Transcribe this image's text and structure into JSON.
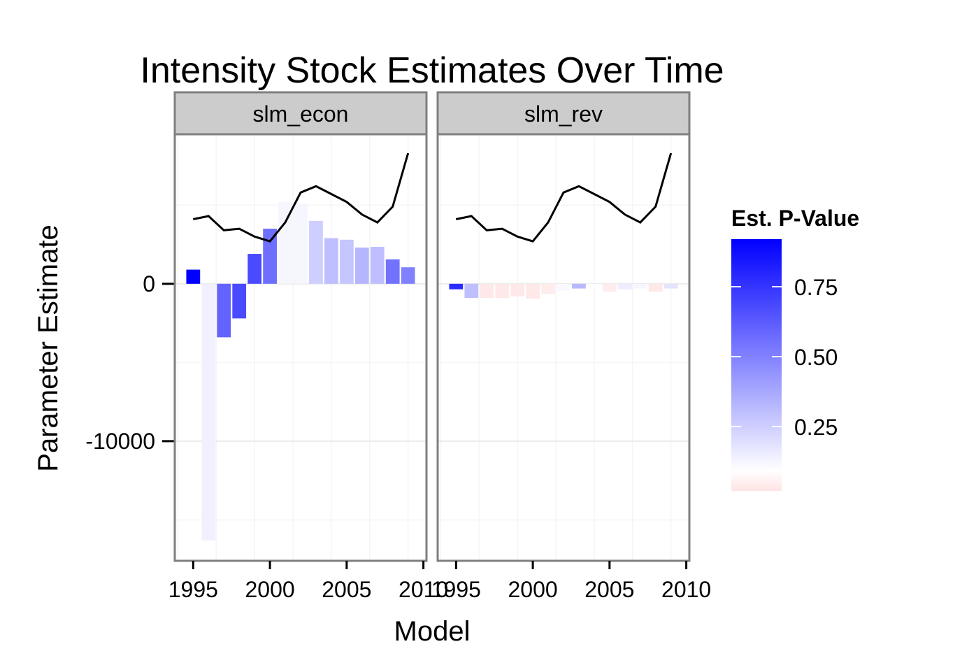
{
  "chart_data": {
    "type": "bar",
    "title": "Intensity Stock Estimates Over Time",
    "xlabel": "Model",
    "ylabel": "Parameter Estimate",
    "xlim": [
      1993.8,
      2010.2
    ],
    "ylim": [
      -17600,
      9500
    ],
    "x_ticks": [
      1995,
      2000,
      2005,
      2010
    ],
    "y_ticks": [
      0,
      -10000
    ],
    "x_tick_labels": [
      "1995",
      "2000",
      "2005",
      "2010"
    ],
    "y_tick_labels": [
      "0",
      "-10000"
    ],
    "grid": true,
    "legend": {
      "title": "Est. P-Value",
      "position": "right",
      "breaks": [
        0.75,
        0.5,
        0.25
      ],
      "labels": [
        "0.75",
        "0.50",
        "0.25"
      ],
      "range": [
        0.02,
        0.92
      ],
      "low_color": "#ffe4e4",
      "mid_color": "#ffffff",
      "high_color": "#0000ff"
    },
    "line": {
      "color": "#000000",
      "x": [
        1995,
        1996,
        1997,
        1998,
        1999,
        2000,
        2001,
        2002,
        2003,
        2004,
        2005,
        2006,
        2007,
        2008,
        2009
      ],
      "y": [
        4100,
        4300,
        3400,
        3500,
        3000,
        2700,
        3900,
        5800,
        6200,
        5700,
        5200,
        4400,
        3900,
        4900,
        8300
      ]
    },
    "panels": [
      {
        "name": "slm_econ",
        "x": [
          1995,
          1996,
          1997,
          1998,
          1999,
          2000,
          2001,
          2002,
          2003,
          2004,
          2005,
          2006,
          2007,
          2008,
          2009
        ],
        "values": [
          900,
          -16300,
          -3400,
          -2200,
          1900,
          3500,
          5200,
          5100,
          4000,
          2900,
          2800,
          2300,
          2350,
          1550,
          1050
        ],
        "pvalues": [
          0.92,
          0.14,
          0.6,
          0.68,
          0.68,
          0.56,
          0.12,
          0.12,
          0.25,
          0.3,
          0.28,
          0.33,
          0.3,
          0.55,
          0.5
        ]
      },
      {
        "name": "slm_rev",
        "x": [
          1995,
          1996,
          1997,
          1998,
          1999,
          2000,
          2001,
          2002,
          2003,
          2004,
          2005,
          2006,
          2007,
          2008,
          2009
        ],
        "values": [
          -350,
          -900,
          -900,
          -900,
          -800,
          -950,
          -650,
          -450,
          -300,
          -250,
          -500,
          -350,
          -300,
          -500,
          -300
        ],
        "pvalues": [
          0.78,
          0.3,
          0.03,
          0.03,
          0.03,
          0.03,
          0.04,
          0.11,
          0.32,
          0.09,
          0.04,
          0.15,
          0.12,
          0.03,
          0.18
        ]
      }
    ]
  }
}
